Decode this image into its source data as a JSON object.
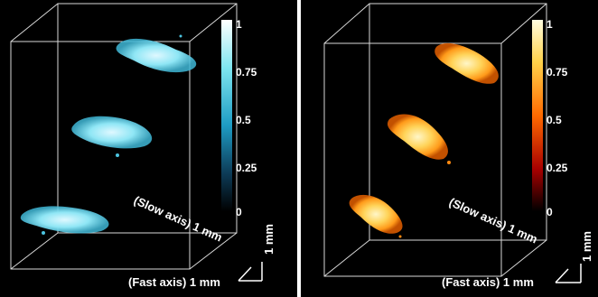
{
  "colorbar": {
    "ticks": [
      "1",
      "0.75",
      "0.5",
      "0.25",
      "0"
    ]
  },
  "axes": {
    "slow_label": "(Slow axis) 1 mm",
    "fast_label": "(Fast axis) 1 mm",
    "vertical_label": "1 mm"
  },
  "colors": {
    "left_colormap": [
      "#ffffff",
      "#7fe6f0",
      "#1e9cc4",
      "#0d3c58",
      "#000000"
    ],
    "right_colormap": [
      "#fffde0",
      "#ffd24a",
      "#ff6a00",
      "#a80000",
      "#000000"
    ],
    "box_lines": "#d8d8d8"
  },
  "icons": [
    "scale-bar-icon",
    "colorbar-icon"
  ]
}
